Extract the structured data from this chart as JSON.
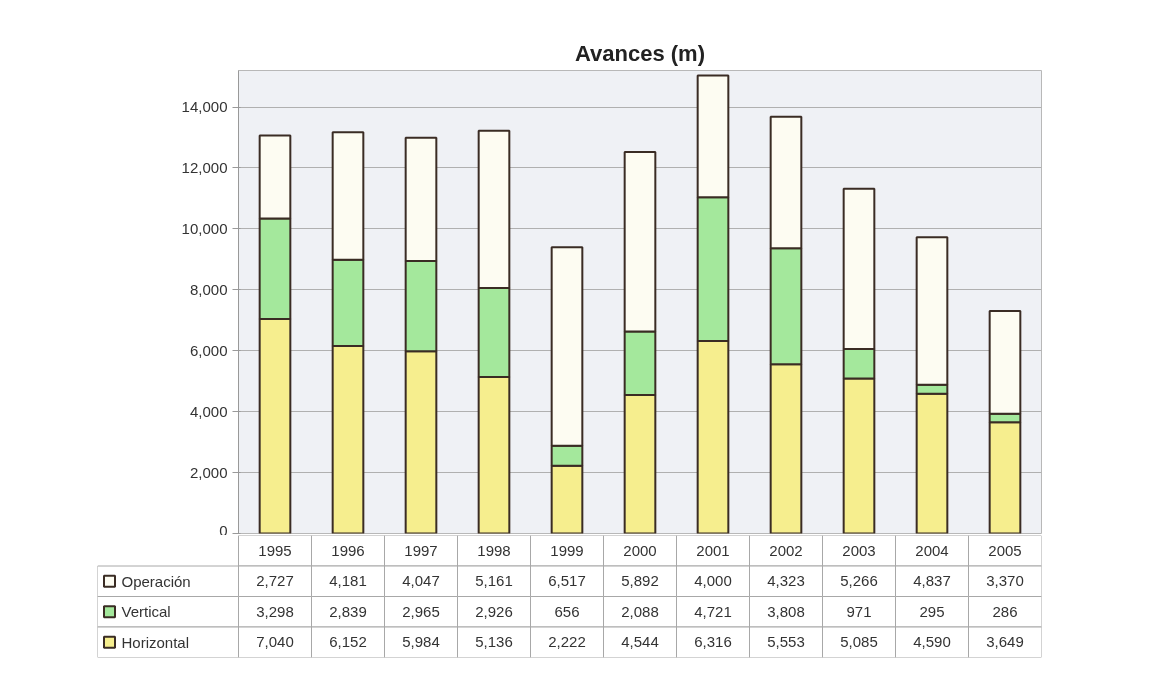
{
  "chart_data": {
    "type": "bar",
    "title": "Avances (m)",
    "categories": [
      "1995",
      "1996",
      "1997",
      "1998",
      "1999",
      "2000",
      "2001",
      "2002",
      "2003",
      "2004",
      "2005"
    ],
    "series": [
      {
        "name": "Horizontal",
        "color": "#f6ee8e",
        "values": [
          7040,
          6152,
          5984,
          5136,
          2222,
          4544,
          6316,
          5553,
          5085,
          4590,
          3649
        ],
        "value_labels": [
          "7,040",
          "6,152",
          "5,984",
          "5,136",
          "2,222",
          "4,544",
          "6,316",
          "5,553",
          "5,085",
          "4,590",
          "3,649"
        ]
      },
      {
        "name": "Vertical",
        "color": "#a4e89c",
        "values": [
          3298,
          2839,
          2965,
          2926,
          656,
          2088,
          4721,
          3808,
          971,
          295,
          286
        ],
        "value_labels": [
          "3,298",
          "2,839",
          "2,965",
          "2,926",
          "656",
          "2,088",
          "4,721",
          "3,808",
          "971",
          "295",
          "286"
        ]
      },
      {
        "name": "Operación",
        "color": "#fdfcf2",
        "values": [
          2727,
          4181,
          4047,
          5161,
          6517,
          5892,
          4000,
          4323,
          5266,
          4837,
          3370
        ],
        "value_labels": [
          "2,727",
          "4,181",
          "4,047",
          "5,161",
          "6,517",
          "5,892",
          "4,000",
          "4,323",
          "5,266",
          "4,837",
          "3,370"
        ]
      }
    ],
    "stacked": true,
    "ylim": [
      0,
      15200
    ],
    "yticks": [
      0,
      {
        "value": 2000,
        "label": "2,000"
      },
      {
        "value": 4000,
        "label": "4,000"
      },
      {
        "value": 6000,
        "label": "6,000"
      },
      {
        "value": 8000,
        "label": "8,000"
      },
      {
        "value": 10000,
        "label": "10,000"
      },
      {
        "value": 12000,
        "label": "12,000"
      },
      {
        "value": 14000,
        "label": "14,000"
      }
    ],
    "grid": "y",
    "legend": "bottom left"
  }
}
